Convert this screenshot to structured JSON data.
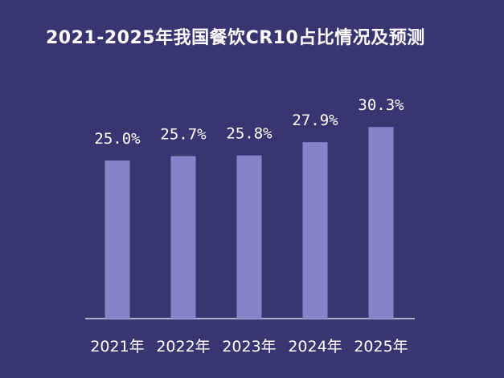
{
  "colors": {
    "background": "#3a3571",
    "bar": "#8a82c8",
    "axis": "#d9d6ef",
    "text": "#ffffff"
  },
  "chart_data": {
    "type": "bar",
    "title": "2021-2025年我国餐饮CR10占比情况及预测",
    "categories": [
      "2021年",
      "2022年",
      "2023年",
      "2024年",
      "2025年"
    ],
    "values": [
      25.0,
      25.7,
      25.8,
      27.9,
      30.3
    ],
    "value_labels": [
      "25.0%",
      "25.7%",
      "25.8%",
      "27.9%",
      "30.3%"
    ],
    "xlabel": "",
    "ylabel": "",
    "grid": false,
    "legend": "none"
  }
}
